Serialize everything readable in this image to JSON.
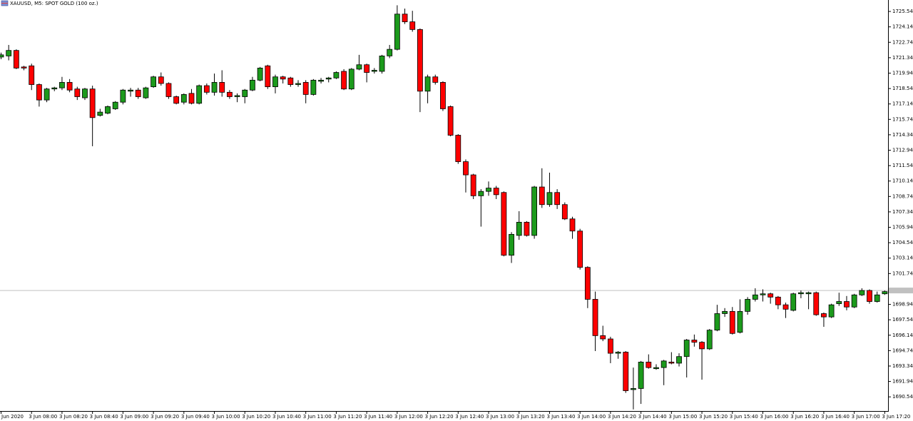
{
  "chart_data": {
    "type": "candlestick",
    "title": "XAUUSD, M5:  SPOT GOLD (100 oz.)",
    "categories": [
      "Jun 2020",
      null,
      null,
      null,
      "3 Jun 08:00",
      null,
      null,
      null,
      "3 Jun 08:20",
      null,
      null,
      null,
      "3 Jun 08:40",
      null,
      null,
      null,
      "3 Jun 09:00",
      null,
      null,
      null,
      "3 Jun 09:20",
      null,
      null,
      null,
      "3 Jun 09:40",
      null,
      null,
      null,
      "3 Jun 10:00",
      null,
      null,
      null,
      "3 Jun 10:20",
      null,
      null,
      null,
      "3 Jun 10:40",
      null,
      null,
      null,
      "3 Jun 11:00",
      null,
      null,
      null,
      "3 Jun 11:20",
      null,
      null,
      null,
      "3 Jun 11:40",
      null,
      null,
      null,
      "3 Jun 12:00",
      null,
      null,
      null,
      "3 Jun 12:20",
      null,
      null,
      null,
      "3 Jun 12:40",
      null,
      null,
      null,
      "3 Jun 13:00",
      null,
      null,
      null,
      "3 Jun 13:20",
      null,
      null,
      null,
      "3 Jun 13:40",
      null,
      null,
      null,
      "3 Jun 14:00",
      null,
      null,
      null,
      "3 Jun 14:20",
      null,
      null,
      null,
      "3 Jun 14:40",
      null,
      null,
      null,
      "3 Jun 15:00",
      null,
      null,
      null,
      "3 Jun 15:20",
      null,
      null,
      null,
      "3 Jun 15:40",
      null,
      null,
      null,
      "3 Jun 16:00",
      null,
      null,
      null,
      "3 Jun 16:20",
      null,
      null,
      null,
      "3 Jun 16:40",
      null,
      null,
      null,
      "3 Jun 17:00",
      null,
      null,
      null,
      "3 Jun 17:20"
    ],
    "open": [
      1721.4,
      1721.5,
      1722.0,
      1720.5,
      1720.6,
      1718.9,
      1717.5,
      1718.5,
      1718.6,
      1719.1,
      1718.5,
      1717.7,
      1718.5,
      1716.1,
      1716.3,
      1716.7,
      1717.3,
      1718.3,
      1718.4,
      1717.7,
      1718.7,
      1719.6,
      1719.0,
      1717.8,
      1717.3,
      1718.1,
      1717.2,
      1718.8,
      1718.2,
      1719.1,
      1718.2,
      1717.8,
      1717.8,
      1718.4,
      1719.3,
      1720.6,
      1718.7,
      1719.6,
      1719.5,
      1718.9,
      1719.1,
      1718.0,
      1719.2,
      1719.4,
      1719.5,
      1720.1,
      1718.5,
      1720.3,
      1720.7,
      1720.1,
      1720.1,
      1721.5,
      1722.1,
      1725.3,
      1724.6,
      1723.9,
      1718.3,
      1719.6,
      1719.1,
      1716.9,
      1714.3,
      1711.9,
      1710.7,
      1708.8,
      1709.2,
      1709.5,
      1709.1,
      1703.4,
      1705.2,
      1706.4,
      1705.2,
      1709.6,
      1708.0,
      1709.1,
      1708.0,
      1706.7,
      1705.6,
      1702.3,
      1699.4,
      1696.1,
      1695.8,
      1694.5,
      1694.6,
      1691.2,
      1691.3,
      1693.7,
      1693.1,
      1693.2,
      1693.7,
      1693.6,
      1694.2,
      1695.7,
      1695.5,
      1694.9,
      1696.6,
      1698.1,
      1698.3,
      1696.4,
      1698.3,
      1699.4,
      1699.8,
      1699.9,
      1699.6,
      1698.9,
      1698.4,
      1699.9,
      1699.9,
      1700.0,
      1698.1,
      1697.8,
      1699.0,
      1699.2,
      1698.7,
      1699.8,
      1700.2,
      1699.2,
      1699.9
    ],
    "high": [
      1721.8,
      1722.5,
      1722.1,
      1720.6,
      1720.8,
      1719.0,
      1718.6,
      1718.7,
      1719.6,
      1719.4,
      1718.7,
      1718.6,
      1718.8,
      1716.7,
      1717.0,
      1717.4,
      1718.5,
      1718.6,
      1718.6,
      1718.7,
      1719.7,
      1720.0,
      1719.1,
      1717.9,
      1718.1,
      1718.5,
      1718.9,
      1719.0,
      1719.9,
      1720.2,
      1718.4,
      1718.1,
      1718.5,
      1719.6,
      1720.5,
      1720.7,
      1719.8,
      1719.7,
      1719.6,
      1719.3,
      1719.3,
      1719.4,
      1719.5,
      1719.6,
      1720.1,
      1720.3,
      1720.4,
      1721.6,
      1720.8,
      1720.4,
      1721.6,
      1722.5,
      1726.1,
      1725.8,
      1725.6,
      1724.0,
      1719.8,
      1719.8,
      1719.2,
      1717.0,
      1714.4,
      1712.1,
      1710.8,
      1709.4,
      1710.1,
      1709.7,
      1709.2,
      1705.5,
      1707.4,
      1706.5,
      1709.7,
      1711.3,
      1710.9,
      1709.4,
      1708.2,
      1706.9,
      1705.8,
      1702.4,
      1700.1,
      1697.0,
      1696.0,
      1694.7,
      1694.7,
      1693.2,
      1693.8,
      1694.4,
      1693.5,
      1693.9,
      1694.6,
      1694.5,
      1695.8,
      1696.2,
      1695.6,
      1696.7,
      1698.9,
      1698.6,
      1698.7,
      1699.4,
      1699.6,
      1700.4,
      1700.3,
      1700.0,
      1699.7,
      1699.1,
      1700.0,
      1700.2,
      1700.1,
      1700.1,
      1698.2,
      1699.0,
      1700.0,
      1699.7,
      1699.9,
      1700.4,
      1700.3,
      1700.1,
      1700.2
    ],
    "low": [
      1721.2,
      1721.1,
      1720.3,
      1720.2,
      1718.4,
      1716.9,
      1717.3,
      1718.3,
      1718.4,
      1718.2,
      1717.5,
      1717.5,
      1713.3,
      1716.0,
      1716.2,
      1716.6,
      1717.1,
      1717.8,
      1717.6,
      1717.6,
      1718.6,
      1718.8,
      1717.6,
      1717.1,
      1717.1,
      1717.1,
      1717.1,
      1718.0,
      1717.9,
      1717.8,
      1717.6,
      1717.3,
      1717.2,
      1718.3,
      1719.2,
      1718.5,
      1718.1,
      1719.0,
      1718.7,
      1718.7,
      1717.2,
      1717.9,
      1719.0,
      1719.1,
      1719.4,
      1718.4,
      1718.4,
      1720.2,
      1719.1,
      1719.9,
      1719.9,
      1721.3,
      1722.0,
      1724.4,
      1723.7,
      1716.4,
      1717.2,
      1718.9,
      1716.5,
      1714.2,
      1711.7,
      1709.1,
      1708.5,
      1706.0,
      1708.8,
      1708.5,
      1703.3,
      1702.7,
      1704.8,
      1705.1,
      1704.9,
      1707.7,
      1707.8,
      1707.6,
      1706.6,
      1704.9,
      1702.1,
      1698.6,
      1694.7,
      1695.6,
      1693.6,
      1694.0,
      1690.9,
      1689.4,
      1689.9,
      1693.1,
      1693.0,
      1691.6,
      1693.5,
      1693.3,
      1692.3,
      1695.1,
      1692.1,
      1694.8,
      1696.5,
      1697.8,
      1696.2,
      1696.3,
      1698.0,
      1699.2,
      1699.2,
      1699.0,
      1698.5,
      1697.7,
      1698.3,
      1699.5,
      1698.5,
      1697.9,
      1696.9,
      1697.7,
      1698.8,
      1698.4,
      1698.6,
      1699.7,
      1699.0,
      1699.1,
      1699.8
    ],
    "close": [
      1721.6,
      1722.0,
      1720.4,
      1720.4,
      1718.9,
      1717.5,
      1718.5,
      1718.6,
      1719.1,
      1718.4,
      1717.8,
      1718.5,
      1715.9,
      1716.4,
      1716.9,
      1717.3,
      1718.4,
      1718.4,
      1717.8,
      1718.6,
      1719.6,
      1719.0,
      1717.8,
      1717.2,
      1718.0,
      1717.2,
      1718.8,
      1718.2,
      1719.1,
      1718.2,
      1717.8,
      1717.9,
      1718.4,
      1719.3,
      1720.4,
      1718.7,
      1719.6,
      1719.4,
      1718.9,
      1719.0,
      1718.0,
      1719.3,
      1719.3,
      1719.5,
      1720.0,
      1718.5,
      1720.3,
      1720.7,
      1720.0,
      1720.2,
      1721.5,
      1722.1,
      1725.3,
      1724.6,
      1723.9,
      1718.3,
      1719.6,
      1719.1,
      1716.7,
      1714.3,
      1711.9,
      1710.7,
      1708.8,
      1709.2,
      1709.5,
      1708.9,
      1703.4,
      1705.3,
      1706.4,
      1705.2,
      1709.6,
      1708.0,
      1709.1,
      1708.0,
      1706.7,
      1705.6,
      1702.3,
      1699.4,
      1696.1,
      1695.8,
      1694.5,
      1694.6,
      1691.1,
      1691.3,
      1693.7,
      1693.2,
      1693.2,
      1693.8,
      1693.6,
      1694.2,
      1695.7,
      1695.5,
      1694.9,
      1696.6,
      1698.1,
      1698.3,
      1696.3,
      1698.3,
      1699.4,
      1699.8,
      1699.9,
      1699.6,
      1698.9,
      1698.5,
      1699.9,
      1700.0,
      1700.0,
      1698.0,
      1697.8,
      1698.9,
      1699.2,
      1698.7,
      1699.8,
      1700.2,
      1699.2,
      1699.8,
      1700.1
    ],
    "up_color": "#1c9a1c",
    "down_color": "#ff0000",
    "current_price": 1700.2,
    "ylim": [
      1689.32,
      1726.58
    ],
    "yticks": [
      1725.54,
      1724.14,
      1722.74,
      1721.34,
      1719.94,
      1718.54,
      1717.14,
      1715.74,
      1714.34,
      1712.94,
      1711.54,
      1710.14,
      1708.74,
      1707.34,
      1705.94,
      1704.54,
      1703.14,
      1701.74,
      1698.94,
      1697.54,
      1696.14,
      1694.74,
      1693.34,
      1691.94,
      1690.54
    ]
  }
}
